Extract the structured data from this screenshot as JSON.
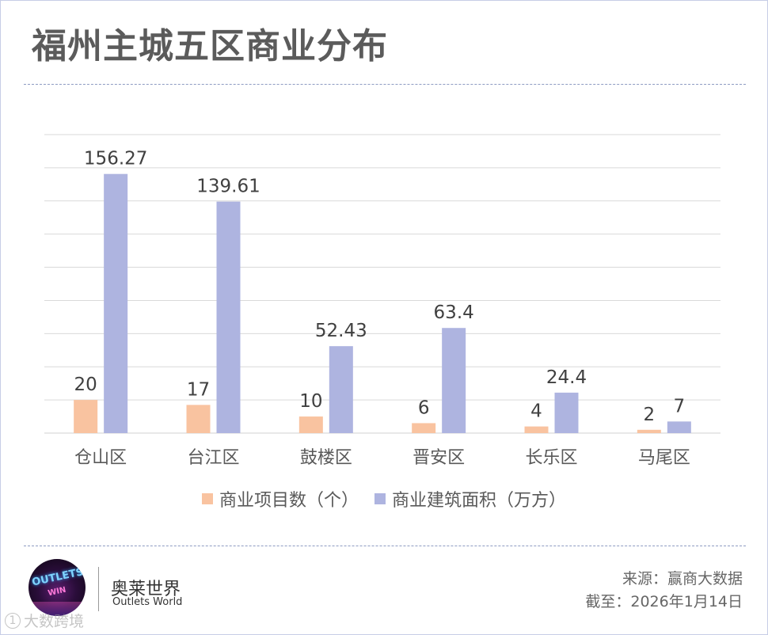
{
  "title": "福州主城五区商业分布",
  "chart_data": {
    "type": "bar",
    "categories": [
      "仓山区",
      "台江区",
      "鼓楼区",
      "晋安区",
      "长乐区",
      "马尾区"
    ],
    "series": [
      {
        "name": "商业项目数（个）",
        "values": [
          20,
          17,
          10,
          6,
          4,
          2
        ],
        "labels": [
          "20",
          "17",
          "10",
          "6",
          "4",
          "2"
        ]
      },
      {
        "name": "商业建筑面积（万方）",
        "values": [
          156.27,
          139.61,
          52.43,
          63.4,
          24.4,
          7
        ],
        "labels": [
          "156.27",
          "139.61",
          "52.43",
          "63.4",
          "24.4",
          "7"
        ]
      }
    ],
    "ylim": [
      0,
      180
    ],
    "grid": true,
    "legend_position": "bottom-center",
    "colors": [
      "#f9c3a0",
      "#aeb4e0"
    ]
  },
  "brand": {
    "name": "奥莱世界",
    "english": "Outlets World",
    "logo_words": [
      "OUTLETS",
      "WIN"
    ]
  },
  "footer": {
    "source": "来源：赢商大数据",
    "date": "截至：2026年1月14日"
  },
  "watermark": {
    "mark": "1",
    "text": "大数跨境"
  },
  "colors": {
    "grid": "#d9d9d9",
    "divider": "#8e9bc2",
    "title": "#5b5b5b",
    "text": "#595959"
  }
}
